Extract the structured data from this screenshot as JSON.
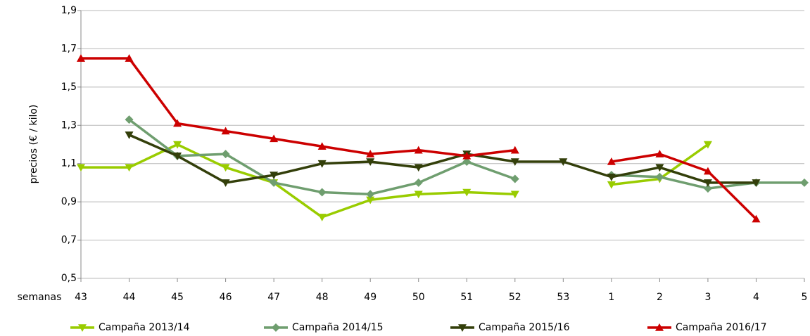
{
  "chart_data": {
    "type": "line",
    "y_label": "precios (€ / kilo)",
    "x_label": "semanas",
    "categories": [
      "43",
      "44",
      "45",
      "46",
      "47",
      "48",
      "49",
      "50",
      "51",
      "52",
      "53",
      "1",
      "2",
      "3",
      "4",
      "5"
    ],
    "ylim": [
      0.5,
      1.9
    ],
    "yticks": [
      {
        "value": 0.5,
        "label": "0,5"
      },
      {
        "value": 0.7,
        "label": "0,7"
      },
      {
        "value": 0.9,
        "label": "0,9"
      },
      {
        "value": 1.1,
        "label": "1,1"
      },
      {
        "value": 1.3,
        "label": "1,3"
      },
      {
        "value": 1.5,
        "label": "1,5"
      },
      {
        "value": 1.7,
        "label": "1,7"
      },
      {
        "value": 1.9,
        "label": "1,9"
      }
    ],
    "grid": true,
    "legend": "bottom",
    "series": [
      {
        "name": "Campaña 2013/14",
        "color": "#99cc00",
        "marker": "triangle-down",
        "values": [
          1.08,
          1.08,
          1.2,
          1.08,
          1.0,
          0.82,
          0.91,
          0.94,
          0.95,
          0.94,
          null,
          0.99,
          1.02,
          1.2,
          null,
          null
        ]
      },
      {
        "name": "Campaña 2014/15",
        "color": "#6f9e6f",
        "marker": "diamond",
        "values": [
          null,
          1.33,
          1.14,
          1.15,
          1.0,
          0.95,
          0.94,
          1.0,
          1.11,
          1.02,
          null,
          1.04,
          1.03,
          0.97,
          1.0,
          1.0
        ]
      },
      {
        "name": "Campaña 2015/16",
        "color": "#333f0a",
        "marker": "triangle-down",
        "values": [
          null,
          1.25,
          1.14,
          1.0,
          1.04,
          1.1,
          1.11,
          1.08,
          1.15,
          1.11,
          1.11,
          1.03,
          1.08,
          1.0,
          1.0,
          null
        ]
      },
      {
        "name": "Campaña 2016/17",
        "color": "#cc0000",
        "marker": "triangle-up",
        "values": [
          1.65,
          1.65,
          1.31,
          1.27,
          1.23,
          1.19,
          1.15,
          1.17,
          1.14,
          1.17,
          null,
          1.11,
          1.15,
          1.06,
          0.81,
          null
        ]
      }
    ]
  }
}
